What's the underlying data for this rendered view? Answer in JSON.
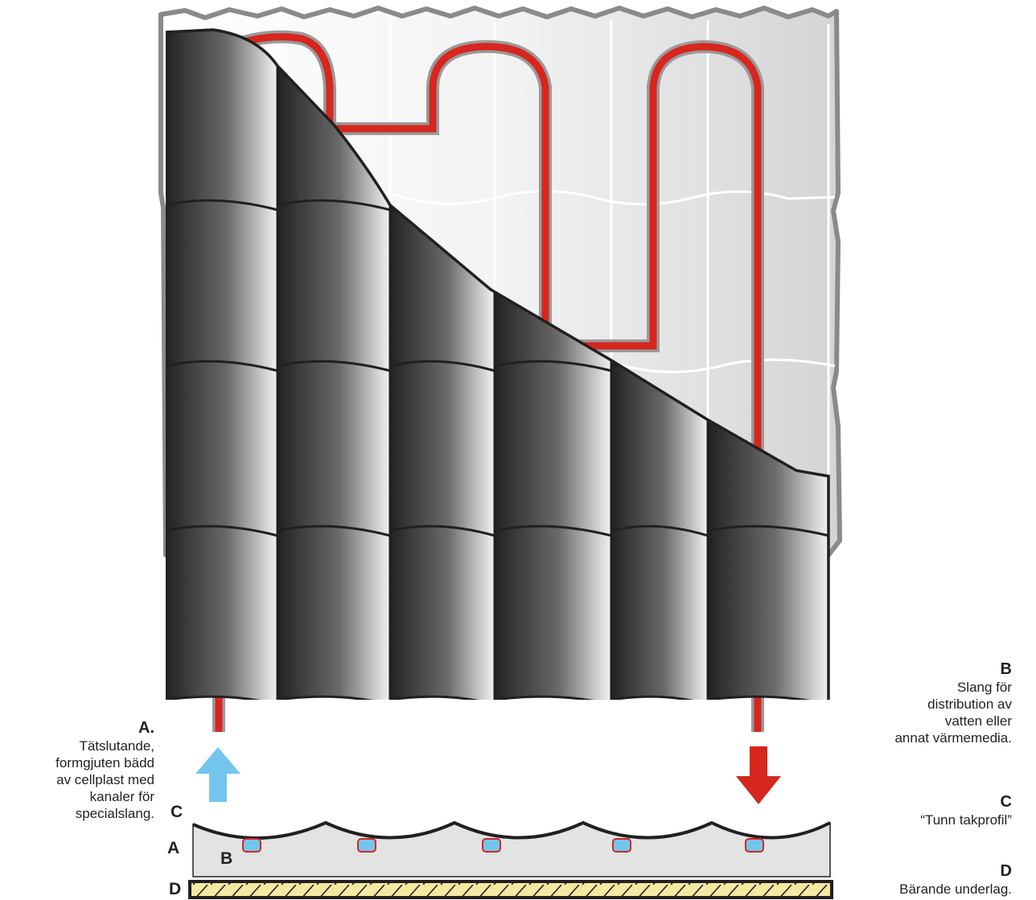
{
  "colors": {
    "tube": "#d7261e",
    "tube_outline": "#9a9a9a",
    "inflow_arrow": "#74c5ee",
    "outflow_arrow": "#d7261e",
    "tile_dark": "#2b2b2b",
    "tile_light": "#f2f2f2",
    "bed_fill": "#e3e3e3",
    "panel_white": "#f4f4f4",
    "panel_shade": "#dedede",
    "panel_border": "#8a8a8a",
    "substrate_fill": "#f4e9a0"
  },
  "labels": {
    "a": {
      "heading": "A.",
      "lines": [
        "Tätslutande,",
        "formgjuten bädd",
        "av cellplast med",
        "kanaler för",
        "specialslang."
      ]
    },
    "b": {
      "heading": "B",
      "lines": [
        "Slang för",
        "distribution av",
        "vatten eller",
        "annat värmemedia."
      ]
    },
    "c": {
      "heading": "C",
      "lines": [
        "“Tunn takprofil”"
      ]
    },
    "d": {
      "heading": "D",
      "lines": [
        "Bärande underlag."
      ]
    }
  },
  "section_letters": {
    "c": "C",
    "a": "A",
    "b": "B",
    "d": "D"
  }
}
